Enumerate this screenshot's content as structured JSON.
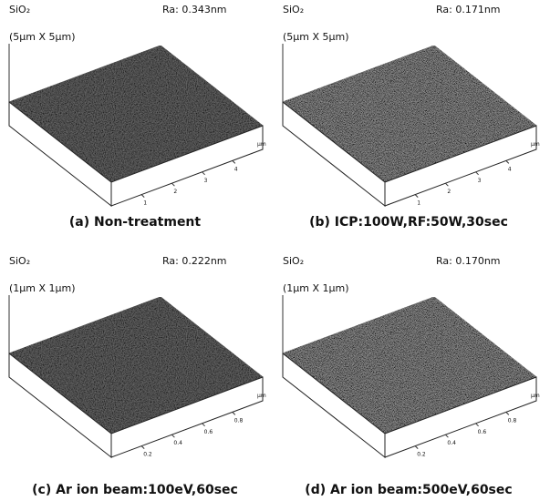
{
  "panels": [
    {
      "material": "SiO₂",
      "scan_size": "(5µm X 5µm)",
      "ra": "Ra: 0.343nm",
      "caption": "(a) Non-treatment",
      "ticks": [
        "1",
        "2",
        "3",
        "4"
      ],
      "unit": "µm"
    },
    {
      "material": "SiO₂",
      "scan_size": "(5µm X 5µm)",
      "ra": "Ra: 0.171nm",
      "caption": "(b) ICP:100W,RF:50W,30sec",
      "ticks": [
        "1",
        "2",
        "3",
        "4"
      ],
      "unit": "µm"
    },
    {
      "material": "SiO₂",
      "scan_size": "(1µm X 1µm)",
      "ra": "Ra: 0.222nm",
      "caption": "(c) Ar ion beam:100eV,60sec",
      "ticks": [
        "0.2",
        "0.4",
        "0.6",
        "0.8"
      ],
      "unit": "µm"
    },
    {
      "material": "SiO₂",
      "scan_size": "(1µm X 1µm)",
      "ra": "Ra: 0.170nm",
      "caption": "(d) Ar ion beam:500eV,60sec",
      "ticks": [
        "0.2",
        "0.4",
        "0.6",
        "0.8"
      ],
      "unit": "µm"
    }
  ]
}
